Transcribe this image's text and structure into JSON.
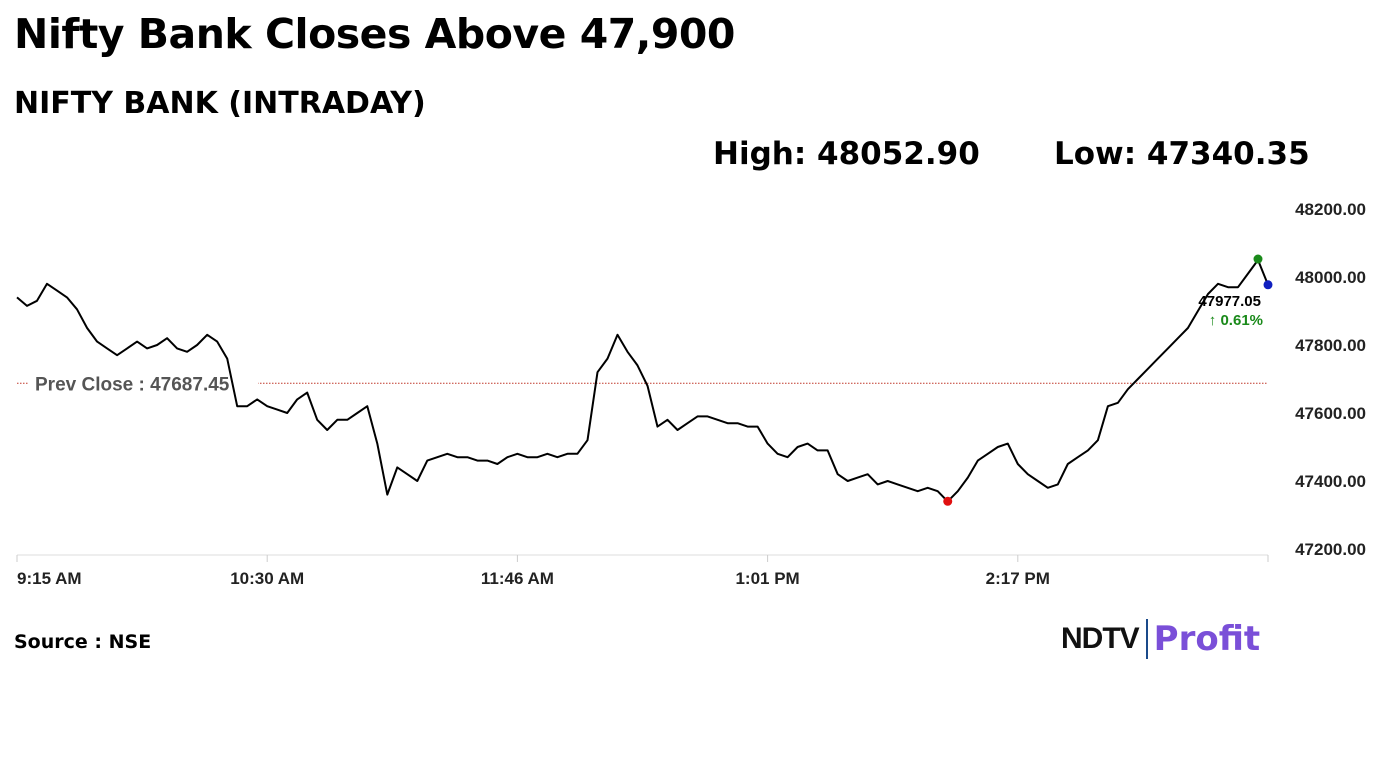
{
  "headline": "Nifty Bank Closes Above 47,900",
  "subtitle": "NIFTY BANK (INTRADAY)",
  "high_text": "High: 48052.90",
  "low_text": "Low: 47340.35",
  "source": "Source : NSE",
  "brand": {
    "name": "NDTV",
    "product": "Profit"
  },
  "colors": {
    "line": "#000000",
    "prev_close_line": "#c0392b",
    "high_dot": "#1a8a1a",
    "low_dot": "#e01010",
    "last_dot": "#1020c0",
    "change_up": "#1a8a1a",
    "grid": "#dddddd",
    "brand_profit": "#7a4fd8"
  },
  "chart_data": {
    "type": "line",
    "title": "NIFTY BANK (INTRADAY)",
    "xlabel": "",
    "ylabel": "",
    "x_ticks": [
      "9:15 AM",
      "10:30 AM",
      "11:46 AM",
      "1:01 PM",
      "2:17 PM"
    ],
    "y_ticks": [
      47200,
      47400,
      47600,
      47800,
      48000,
      48200
    ],
    "y_tick_labels": [
      "47200.00",
      "47400.00",
      "47600.00",
      "47800.00",
      "48000.00",
      "48200.00"
    ],
    "ylim": [
      47200,
      48200
    ],
    "x_range_minutes": [
      0,
      375
    ],
    "grid": false,
    "prev_close": 47687.45,
    "prev_close_label": "Prev Close : 47687.45",
    "high": 48052.9,
    "low": 47340.35,
    "last": 47977.05,
    "last_label": "47977.05",
    "change_label": "↑ 0.61%",
    "x_minutes": [
      0,
      3,
      6,
      9,
      12,
      15,
      18,
      21,
      24,
      27,
      30,
      33,
      36,
      39,
      42,
      45,
      48,
      51,
      54,
      57,
      60,
      63,
      66,
      69,
      72,
      75,
      78,
      81,
      84,
      87,
      90,
      93,
      96,
      99,
      102,
      105,
      108,
      111,
      114,
      117,
      120,
      123,
      126,
      129,
      132,
      135,
      138,
      141,
      144,
      147,
      150,
      153,
      156,
      159,
      162,
      165,
      168,
      171,
      174,
      177,
      180,
      183,
      186,
      189,
      192,
      195,
      198,
      201,
      204,
      207,
      210,
      213,
      216,
      219,
      222,
      225,
      228,
      231,
      234,
      237,
      240,
      243,
      246,
      249,
      252,
      255,
      258,
      261,
      264,
      267,
      270,
      273,
      276,
      279,
      282,
      285,
      288,
      291,
      294,
      297,
      300,
      303,
      306,
      309,
      312,
      315,
      318,
      321,
      324,
      327,
      330,
      333,
      336,
      339,
      342,
      345,
      348,
      351,
      354,
      357,
      360,
      363,
      366,
      369,
      372,
      375
    ],
    "values": [
      47940,
      47915,
      47930,
      47980,
      47960,
      47940,
      47905,
      47850,
      47810,
      47790,
      47770,
      47790,
      47810,
      47790,
      47800,
      47820,
      47790,
      47780,
      47800,
      47830,
      47810,
      47760,
      47620,
      47620,
      47640,
      47620,
      47610,
      47600,
      47640,
      47660,
      47580,
      47550,
      47580,
      47580,
      47600,
      47620,
      47510,
      47360,
      47440,
      47420,
      47400,
      47460,
      47470,
      47480,
      47470,
      47470,
      47460,
      47460,
      47450,
      47470,
      47480,
      47470,
      47470,
      47480,
      47470,
      47480,
      47480,
      47520,
      47720,
      47760,
      47830,
      47780,
      47740,
      47680,
      47560,
      47580,
      47550,
      47570,
      47590,
      47590,
      47580,
      47570,
      47570,
      47560,
      47560,
      47510,
      47480,
      47470,
      47500,
      47510,
      47490,
      47490,
      47420,
      47400,
      47410,
      47420,
      47390,
      47400,
      47390,
      47380,
      47370,
      47380,
      47370,
      47340,
      47370,
      47410,
      47460,
      47480,
      47500,
      47510,
      47450,
      47420,
      47400,
      47380,
      47390,
      47450,
      47470,
      47490,
      47520,
      47620,
      47630,
      47670,
      47700,
      47730,
      47760,
      47790,
      47820,
      47850,
      47900,
      47950,
      47980,
      47970,
      47970,
      48010,
      48050,
      47977
    ]
  }
}
